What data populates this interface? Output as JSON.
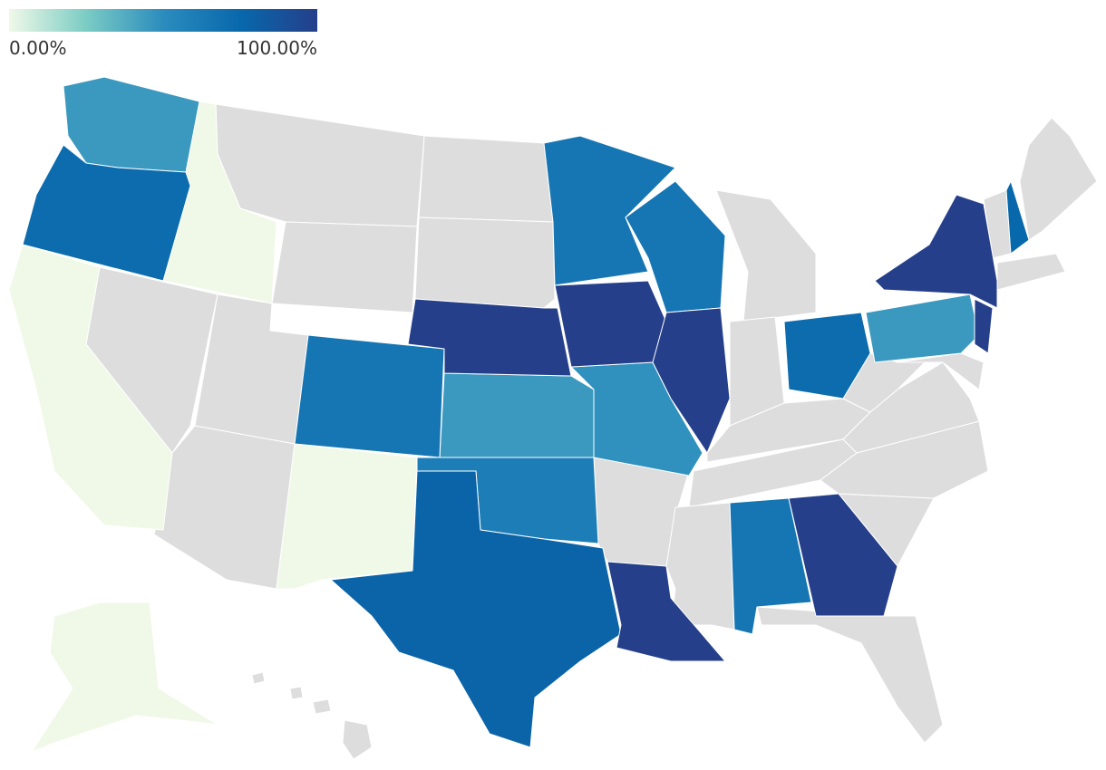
{
  "chart_data": {
    "type": "choropleth",
    "values": [
      0,
      0,
      0,
      0,
      45,
      45,
      48,
      45,
      65,
      65,
      65,
      60,
      65,
      72,
      72,
      78,
      75,
      100,
      100,
      100,
      100,
      100,
      100,
      100
    ],
    "colorscale": [
      "#f0f9e8",
      "#7bccc4",
      "#2b8cbe",
      "#0868ac",
      "#253f8a"
    ],
    "clim": [
      0,
      100
    ],
    "legend_ticks": [
      {
        "value": 0,
        "label": "0.00%"
      },
      {
        "value": 100,
        "label": "100.00%"
      }
    ]
  }
}
